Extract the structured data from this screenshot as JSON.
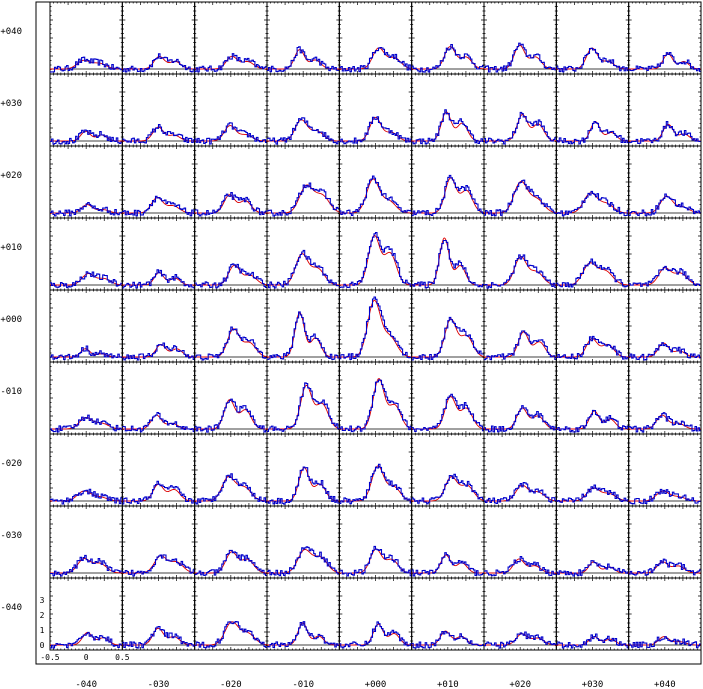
{
  "chart_data": {
    "type": "line",
    "title": "",
    "xlabel": "",
    "ylabel": "",
    "grid": false,
    "legend": "none",
    "colors": {
      "observed": "#0000cc",
      "model": "#dd0000",
      "axis": "#000000"
    },
    "x_offsets": [
      "-040",
      "-030",
      "-020",
      "-010",
      "+000",
      "+010",
      "+020",
      "+030",
      "+040"
    ],
    "y_offsets": [
      "+040",
      "+030",
      "+020",
      "+010",
      "+000",
      "-010",
      "-020",
      "-030",
      "-040"
    ],
    "panel_x_ticks": [
      "-0.5",
      "0",
      "0.5"
    ],
    "panel_y_ticks": [
      "0",
      "1",
      "2",
      "3"
    ],
    "panel_xlim": [
      -0.5,
      0.5
    ],
    "panel_ylim": [
      0,
      4
    ],
    "peak_heights": [
      [
        0.6,
        0.9,
        0.9,
        1.4,
        1.5,
        1.6,
        1.7,
        1.5,
        1.1
      ],
      [
        0.7,
        1.0,
        1.1,
        1.5,
        1.7,
        2.1,
        1.9,
        1.4,
        1.2
      ],
      [
        0.6,
        1.1,
        1.3,
        1.9,
        2.4,
        2.5,
        2.2,
        1.4,
        1.2
      ],
      [
        0.8,
        0.9,
        1.4,
        2.2,
        3.5,
        3.4,
        2.0,
        1.5,
        1.2
      ],
      [
        0.6,
        0.9,
        2.0,
        3.2,
        4.0,
        2.7,
        1.8,
        1.3,
        1.0
      ],
      [
        0.8,
        1.0,
        2.1,
        3.1,
        3.6,
        2.3,
        1.5,
        1.3,
        1.0
      ],
      [
        0.7,
        1.2,
        1.7,
        2.4,
        2.5,
        1.7,
        1.1,
        0.9,
        0.7
      ],
      [
        1.0,
        1.2,
        1.5,
        1.6,
        1.7,
        1.3,
        1.0,
        0.8,
        0.8
      ],
      [
        0.9,
        1.2,
        1.6,
        1.6,
        1.5,
        1.0,
        0.8,
        0.6,
        0.6
      ]
    ]
  }
}
